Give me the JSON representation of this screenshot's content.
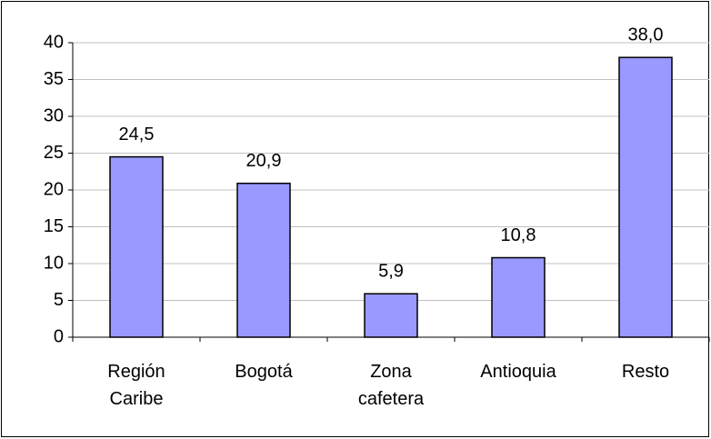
{
  "chart_data": {
    "type": "bar",
    "categories": [
      "Región Caribe",
      "Bogotá",
      "Zona cafetera",
      "Antioquia",
      "Resto"
    ],
    "values": [
      24.5,
      20.9,
      5.9,
      10.8,
      38.0
    ],
    "value_labels": [
      "24,5",
      "20,9",
      "5,9",
      "10,8",
      "38,0"
    ],
    "color": "#9999ff",
    "ylim": [
      0,
      40
    ],
    "yticks": [
      0,
      5,
      10,
      15,
      20,
      25,
      30,
      35,
      40
    ],
    "grid": true
  }
}
